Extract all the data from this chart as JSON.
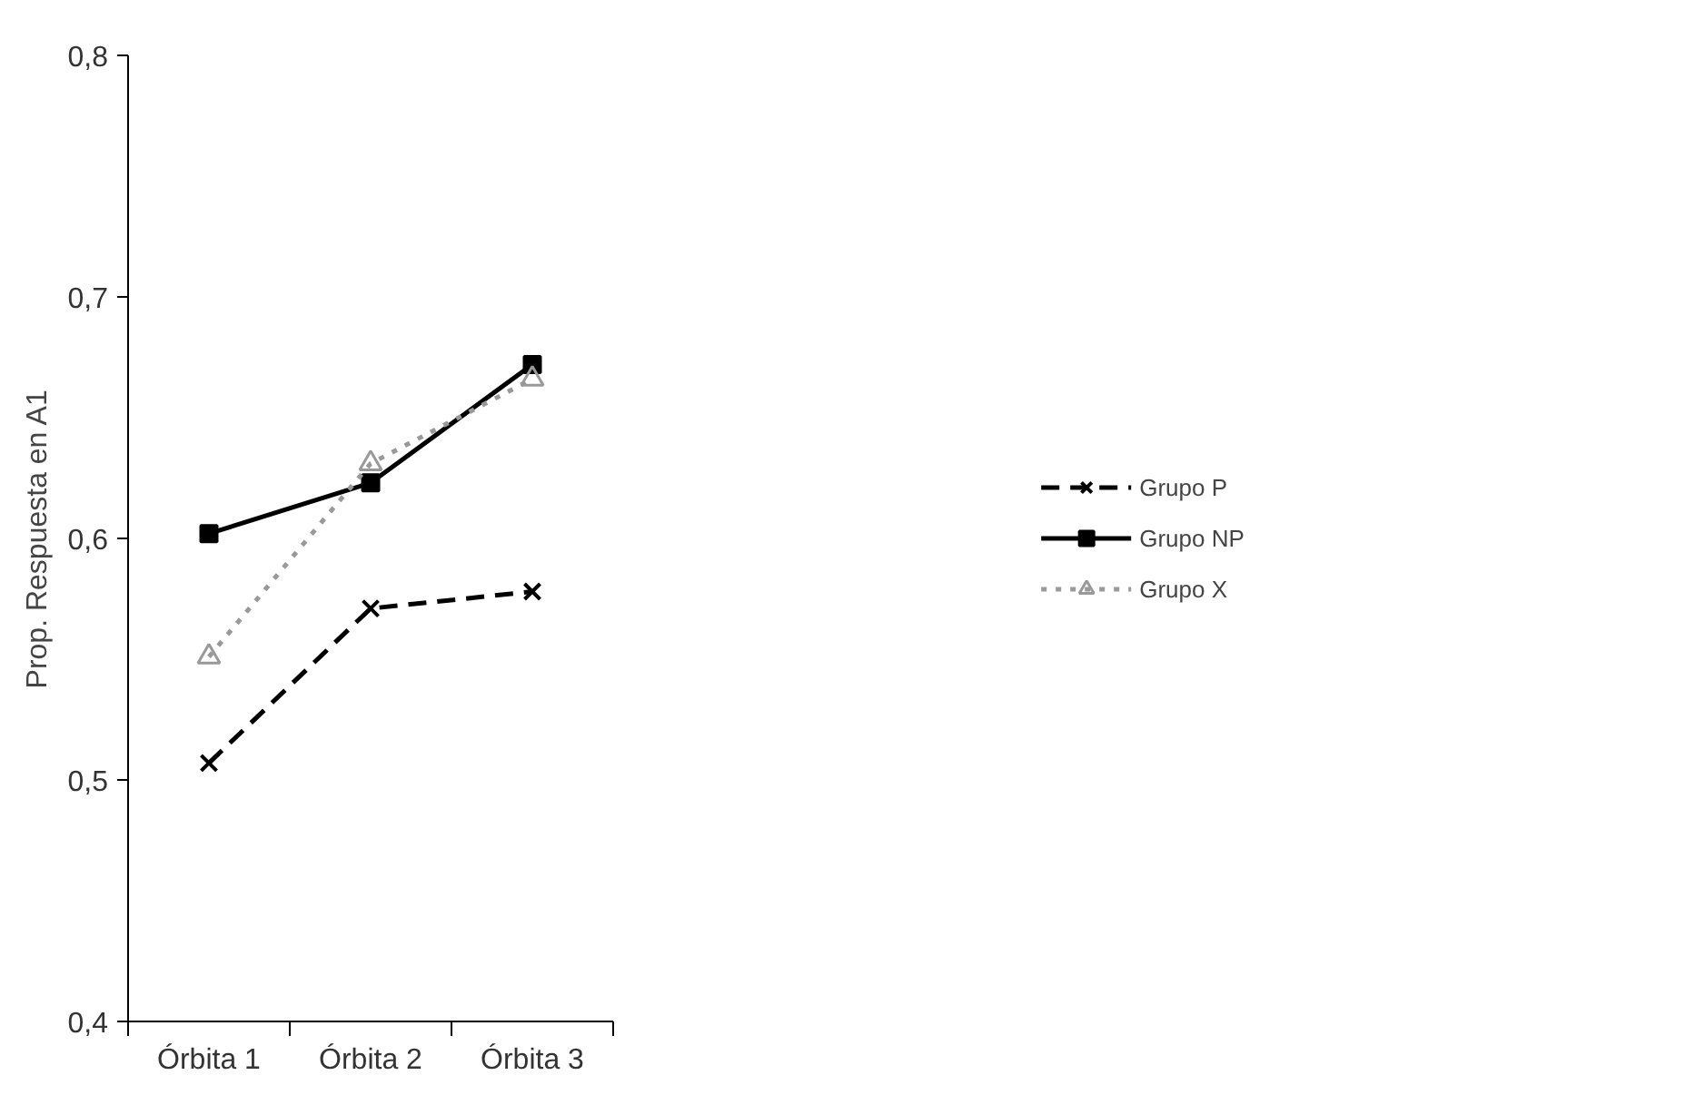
{
  "chart_data": {
    "type": "line",
    "ylabel": "Prop. Respuesta en A1",
    "categories": [
      "Órbita 1",
      "Órbita 2",
      "Órbita 3"
    ],
    "series": [
      {
        "name": "Grupo P",
        "color": "#000000",
        "values": [
          0.507,
          0.571,
          0.578
        ],
        "marker": "cross",
        "line_style": "dashed"
      },
      {
        "name": "Grupo NP",
        "color": "#000000",
        "values": [
          0.602,
          0.623,
          0.672
        ],
        "marker": "square",
        "line_style": "solid"
      },
      {
        "name": "Grupo X",
        "color": "#999999",
        "values": [
          0.551,
          0.631,
          0.666
        ],
        "marker": "triangle",
        "line_style": "dotted"
      }
    ],
    "ylim": [
      0.4,
      0.8
    ],
    "yticks": [
      {
        "value": 0.4,
        "label": "0,4"
      },
      {
        "value": 0.5,
        "label": "0,5"
      },
      {
        "value": 0.6,
        "label": "0,6"
      },
      {
        "value": 0.7,
        "label": "0,7"
      },
      {
        "value": 0.8,
        "label": "0,8"
      }
    ],
    "grid": false,
    "legend": "right"
  }
}
